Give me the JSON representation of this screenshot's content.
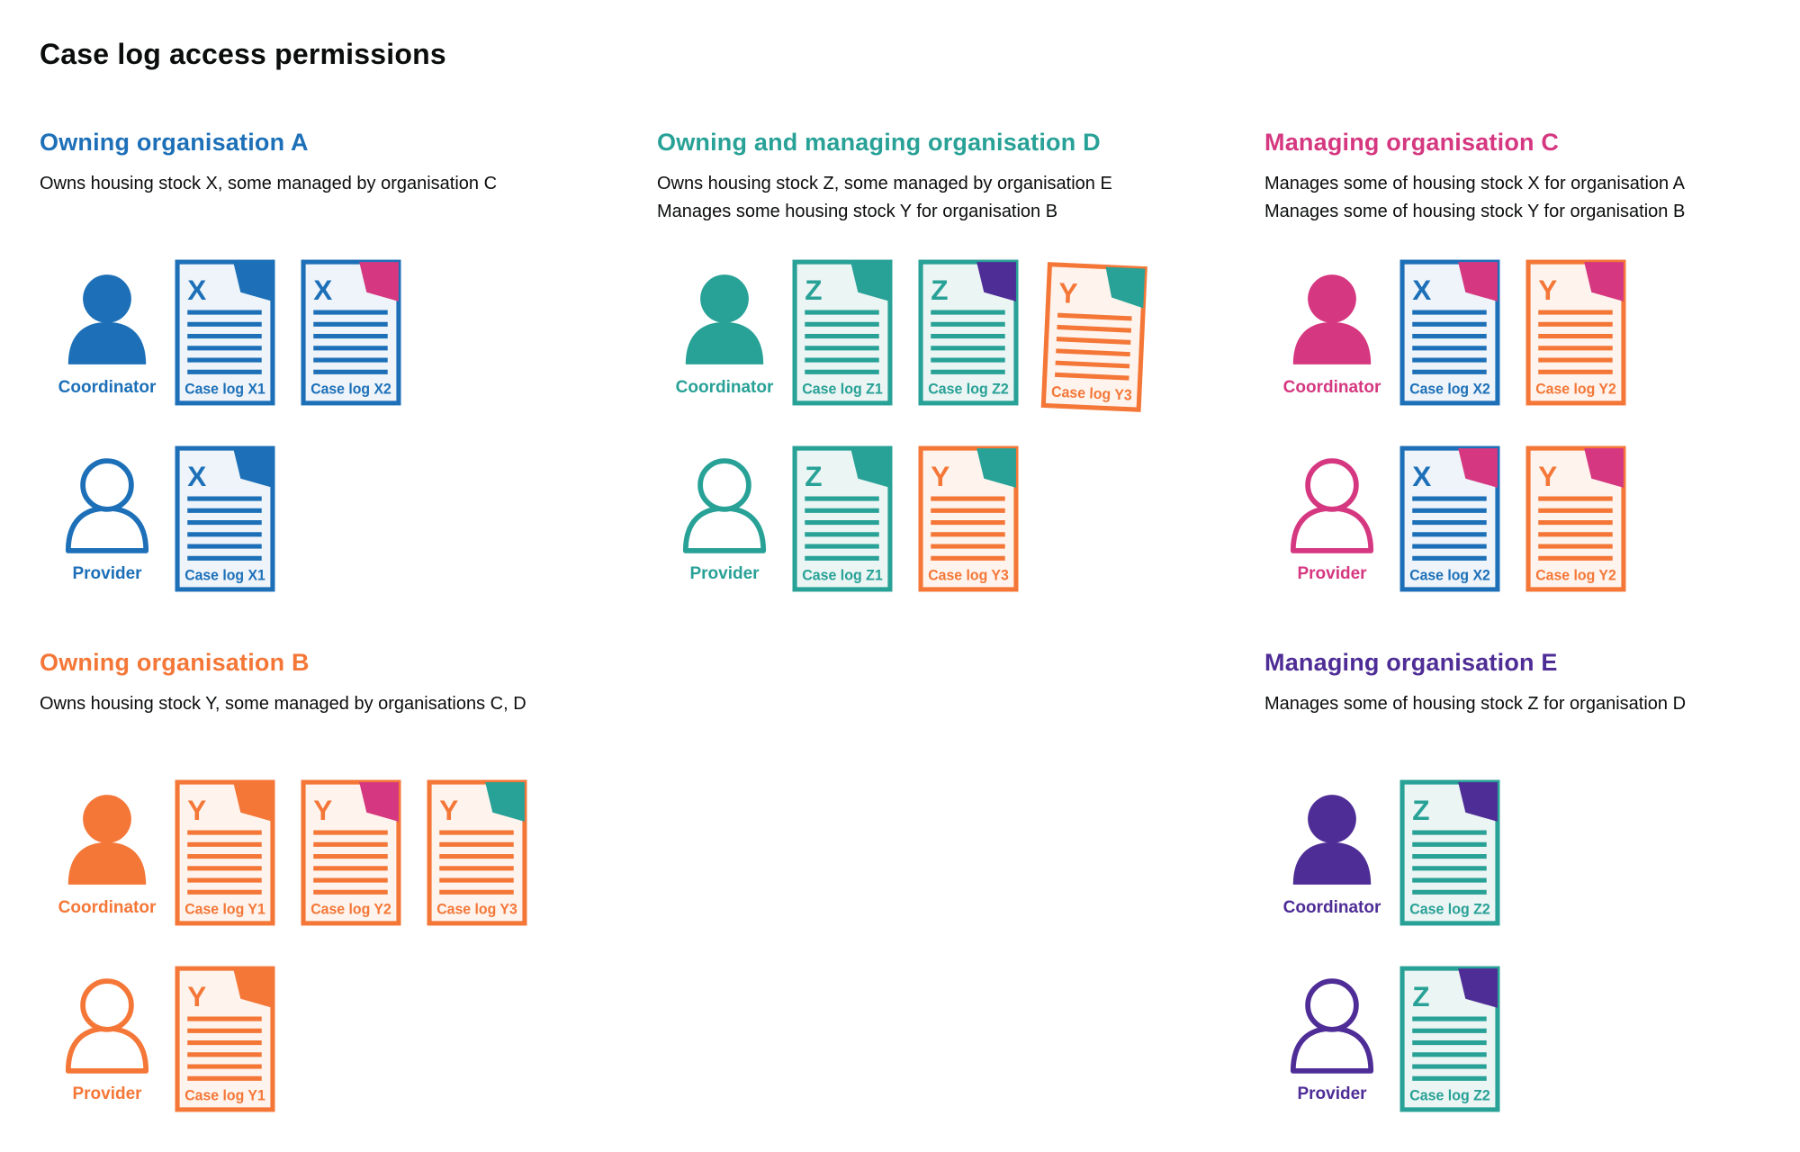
{
  "page_title": "Case log access permissions",
  "colors": {
    "blue": "#1d70b8",
    "teal": "#28a197",
    "pink": "#d53880",
    "orange": "#f47738",
    "purple": "#4f2d96",
    "text": "#0b0c0c"
  },
  "stocks": {
    "X": {
      "color": "#1d70b8",
      "tint": "#eef4fa"
    },
    "Y": {
      "color": "#f47738",
      "tint": "#fef4ed"
    },
    "Z": {
      "color": "#28a197",
      "tint": "#ebf5f3"
    }
  },
  "sections": [
    {
      "id": "owning-organisation-a",
      "heading": "Owning organisation A",
      "color_key": "blue",
      "description": [
        "Owns housing stock X, some managed by organisation C"
      ],
      "rows": [
        {
          "role": "Coordinator",
          "person": "filled",
          "docs": [
            {
              "stock": "X",
              "letter": "X",
              "label": "Case log X1",
              "fold_color_key": "blue"
            },
            {
              "stock": "X",
              "letter": "X",
              "label": "Case log X2",
              "fold_color_key": "pink"
            }
          ]
        },
        {
          "role": "Provider",
          "person": "outline",
          "docs": [
            {
              "stock": "X",
              "letter": "X",
              "label": "Case log X1",
              "fold_color_key": "blue"
            }
          ]
        }
      ]
    },
    {
      "id": "owning-and-managing-organisation-d",
      "heading": "Owning and managing organisation D",
      "color_key": "teal",
      "description": [
        "Owns housing stock Z, some managed by organisation E",
        "Manages some housing stock Y for organisation B"
      ],
      "rows": [
        {
          "role": "Coordinator",
          "person": "filled",
          "docs": [
            {
              "stock": "Z",
              "letter": "Z",
              "label": "Case log Z1",
              "fold_color_key": "teal"
            },
            {
              "stock": "Z",
              "letter": "Z",
              "label": "Case log Z2",
              "fold_color_key": "purple"
            },
            {
              "stock": "Y",
              "letter": "Y",
              "label": "Case log Y3",
              "fold_color_key": "teal",
              "tilted": true
            }
          ]
        },
        {
          "role": "Provider",
          "person": "outline",
          "docs": [
            {
              "stock": "Z",
              "letter": "Z",
              "label": "Case log Z1",
              "fold_color_key": "teal"
            },
            {
              "stock": "Y",
              "letter": "Y",
              "label": "Case log Y3",
              "fold_color_key": "teal"
            }
          ]
        }
      ]
    },
    {
      "id": "managing-organisation-c",
      "heading": "Managing organisation C",
      "color_key": "pink",
      "description": [
        "Manages some of housing stock X for organisation A",
        "Manages some of housing stock Y for organisation B"
      ],
      "rows": [
        {
          "role": "Coordinator",
          "person": "filled",
          "docs": [
            {
              "stock": "X",
              "letter": "X",
              "label": "Case log X2",
              "fold_color_key": "pink"
            },
            {
              "stock": "Y",
              "letter": "Y",
              "label": "Case log Y2",
              "fold_color_key": "pink"
            }
          ]
        },
        {
          "role": "Provider",
          "person": "outline",
          "docs": [
            {
              "stock": "X",
              "letter": "X",
              "label": "Case log X2",
              "fold_color_key": "pink"
            },
            {
              "stock": "Y",
              "letter": "Y",
              "label": "Case log Y2",
              "fold_color_key": "pink"
            }
          ]
        }
      ]
    },
    {
      "id": "owning-organisation-b",
      "heading": "Owning organisation B",
      "color_key": "orange",
      "description": [
        "Owns housing stock Y, some managed by organisations C, D"
      ],
      "rows": [
        {
          "role": "Coordinator",
          "person": "filled",
          "docs": [
            {
              "stock": "Y",
              "letter": "Y",
              "label": "Case log Y1",
              "fold_color_key": "orange"
            },
            {
              "stock": "Y",
              "letter": "Y",
              "label": "Case log Y2",
              "fold_color_key": "pink"
            },
            {
              "stock": "Y",
              "letter": "Y",
              "label": "Case log Y3",
              "fold_color_key": "teal"
            }
          ]
        },
        {
          "role": "Provider",
          "person": "outline",
          "docs": [
            {
              "stock": "Y",
              "letter": "Y",
              "label": "Case log Y1",
              "fold_color_key": "orange"
            }
          ]
        }
      ]
    },
    {
      "id": "managing-organisation-e",
      "heading": "Managing organisation E",
      "color_key": "purple",
      "description": [
        "Manages some of housing stock Z for organisation D"
      ],
      "rows": [
        {
          "role": "Coordinator",
          "person": "filled",
          "docs": [
            {
              "stock": "Z",
              "letter": "Z",
              "label": "Case log Z2",
              "fold_color_key": "purple"
            }
          ]
        },
        {
          "role": "Provider",
          "person": "outline",
          "docs": [
            {
              "stock": "Z",
              "letter": "Z",
              "label": "Case log Z2",
              "fold_color_key": "purple"
            }
          ]
        }
      ]
    }
  ]
}
